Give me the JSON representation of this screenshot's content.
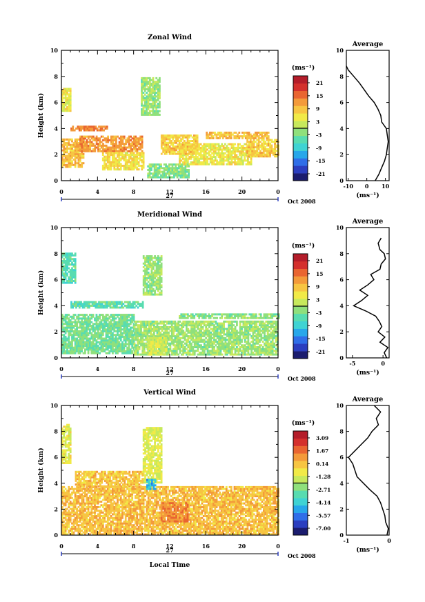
{
  "common": {
    "xlabel": "Local Time",
    "date_label": "Oct 2008",
    "day_label": "27",
    "unit_label": "(ms⁻¹)",
    "avg_title": "Average",
    "avg_xlabel": "(ms⁻¹)",
    "ylabel": "Height (km)"
  },
  "chart_data": [
    {
      "type": "heatmap",
      "title": "Zonal Wind",
      "ylabel": "Height (km)",
      "xlabel": "",
      "x_ticks": [
        "0",
        "4",
        "8",
        "12",
        "16",
        "20",
        "0"
      ],
      "y_ticks": [
        "0",
        "2",
        "4",
        "6",
        "8",
        "10"
      ],
      "xlim": [
        0,
        24
      ],
      "ylim": [
        0,
        10
      ],
      "colorbar_unit": "(ms⁻¹)",
      "colorbar_ticks": [
        "21",
        "15",
        "9",
        "3",
        "-3",
        "-9",
        "-15",
        "-21"
      ],
      "colorbar_range": [
        -24,
        24
      ],
      "colors": [
        "#1b1c6e",
        "#2b3ebf",
        "#2f6ee8",
        "#27a7ea",
        "#3fd3d3",
        "#58dcb0",
        "#8fe07c",
        "#c7e95c",
        "#f1ea47",
        "#f7c542",
        "#f39a3a",
        "#e96531",
        "#d4302d",
        "#b41d2a"
      ],
      "blobs": [
        {
          "x": [
            0,
            2.5
          ],
          "y": [
            1.0,
            3.2
          ],
          "v": 9
        },
        {
          "x": [
            2,
            9
          ],
          "y": [
            2.2,
            3.4
          ],
          "v": 12
        },
        {
          "x": [
            1,
            5
          ],
          "y": [
            3.8,
            4.1
          ],
          "v": 14
        },
        {
          "x": [
            4.5,
            9
          ],
          "y": [
            0.8,
            2.2
          ],
          "v": 6
        },
        {
          "x": [
            9.5,
            14
          ],
          "y": [
            0.2,
            1.3
          ],
          "v": -2
        },
        {
          "x": [
            8.8,
            10.8
          ],
          "y": [
            5.0,
            7.8
          ],
          "v": -1
        },
        {
          "x": [
            0,
            1
          ],
          "y": [
            5.3,
            7.0
          ],
          "v": 5
        },
        {
          "x": [
            13,
            21
          ],
          "y": [
            1.2,
            2.8
          ],
          "v": 5
        },
        {
          "x": [
            20.5,
            24
          ],
          "y": [
            1.8,
            3.2
          ],
          "v": 8
        },
        {
          "x": [
            11,
            15
          ],
          "y": [
            2.0,
            3.5
          ],
          "v": 8
        },
        {
          "x": [
            16,
            23
          ],
          "y": [
            3.2,
            3.7
          ],
          "v": 9
        }
      ],
      "avg": {
        "xlim": [
          -11,
          12
        ],
        "x_ticks": [
          "-10",
          "0",
          "10"
        ],
        "y_ticks": [
          "0",
          "2",
          "4",
          "6",
          "8",
          "10"
        ],
        "heights": [
          0.0,
          0.5,
          1.0,
          1.5,
          2.0,
          2.5,
          3.0,
          3.5,
          4.0,
          4.5,
          5.0,
          5.5,
          6.0,
          6.5,
          7.0,
          7.5,
          8.0,
          8.5,
          8.8
        ],
        "values": [
          4.5,
          6.5,
          8.0,
          9.5,
          10.5,
          11.0,
          11.5,
          11.0,
          10.5,
          8.0,
          7.5,
          6.0,
          4.0,
          1.0,
          -1.5,
          -4.0,
          -7.0,
          -10.0,
          -11.0
        ]
      }
    },
    {
      "type": "heatmap",
      "title": "Meridional Wind",
      "ylabel": "Height (km)",
      "xlabel": "",
      "x_ticks": [
        "0",
        "4",
        "8",
        "12",
        "16",
        "20",
        "0"
      ],
      "y_ticks": [
        "0",
        "2",
        "4",
        "6",
        "8",
        "10"
      ],
      "xlim": [
        0,
        24
      ],
      "ylim": [
        0,
        10
      ],
      "colorbar_unit": "(ms⁻¹)",
      "colorbar_ticks": [
        "21",
        "15",
        "9",
        "3",
        "-3",
        "-9",
        "-15",
        "-21"
      ],
      "colorbar_range": [
        -24,
        24
      ],
      "colors": [
        "#1b1c6e",
        "#2b3ebf",
        "#2f6ee8",
        "#27a7ea",
        "#3fd3d3",
        "#58dcb0",
        "#8fe07c",
        "#c7e95c",
        "#f1ea47",
        "#f7c542",
        "#f39a3a",
        "#e96531",
        "#d4302d",
        "#b41d2a"
      ],
      "blobs": [
        {
          "x": [
            0,
            8
          ],
          "y": [
            0.3,
            3.3
          ],
          "v": -3
        },
        {
          "x": [
            1,
            9
          ],
          "y": [
            3.8,
            4.3
          ],
          "v": -5
        },
        {
          "x": [
            8,
            24
          ],
          "y": [
            0.2,
            2.8
          ],
          "v": -1
        },
        {
          "x": [
            9,
            11
          ],
          "y": [
            4.8,
            7.8
          ],
          "v": -1
        },
        {
          "x": [
            0,
            1.5
          ],
          "y": [
            5.7,
            8.0
          ],
          "v": -5
        },
        {
          "x": [
            13,
            24
          ],
          "y": [
            3.0,
            3.4
          ],
          "v": -2
        },
        {
          "x": [
            9.5,
            11.5
          ],
          "y": [
            0.2,
            1.5
          ],
          "v": 3
        }
      ],
      "avg": {
        "xlim": [
          -6,
          1
        ],
        "x_ticks": [
          "-5",
          "0"
        ],
        "y_ticks": [
          "0",
          "2",
          "4",
          "6",
          "8",
          "10"
        ],
        "heights": [
          0.0,
          0.4,
          0.8,
          1.2,
          1.6,
          2.0,
          2.4,
          2.8,
          3.2,
          3.6,
          4.0,
          4.4,
          4.8,
          5.2,
          5.6,
          6.0,
          6.4,
          6.8,
          7.2,
          7.6,
          8.0,
          8.3,
          8.8,
          9.2
        ],
        "values": [
          0.6,
          0.2,
          0.8,
          -0.5,
          0.3,
          -0.8,
          -0.2,
          -0.6,
          -1.2,
          -2.8,
          -4.8,
          -3.5,
          -2.5,
          -3.8,
          -2.5,
          -1.5,
          -2.0,
          -0.5,
          -0.3,
          0.4,
          0.2,
          -0.5,
          -0.8,
          -0.3
        ]
      }
    },
    {
      "type": "heatmap",
      "title": "Vertical Wind",
      "ylabel": "Height (km)",
      "xlabel": "Local Time",
      "x_ticks": [
        "0",
        "4",
        "8",
        "12",
        "16",
        "20",
        "0"
      ],
      "y_ticks": [
        "0",
        "2",
        "4",
        "6",
        "8",
        "10"
      ],
      "xlim": [
        0,
        24
      ],
      "ylim": [
        0,
        10
      ],
      "colorbar_unit": "(ms⁻¹)",
      "colorbar_ticks": [
        "3.09",
        "1.67",
        "0.14",
        "-1.28",
        "-2.71",
        "-4.14",
        "-5.57",
        "-7.00"
      ],
      "colorbar_range": [
        -8.4,
        4.5
      ],
      "colors": [
        "#1b1c6e",
        "#2b3ebf",
        "#2f6ee8",
        "#27a7ea",
        "#3fd3d3",
        "#58dcb0",
        "#8fe07c",
        "#c7e95c",
        "#f1ea47",
        "#f7c542",
        "#f39a3a",
        "#e96531",
        "#d4302d",
        "#b41d2a"
      ],
      "blobs": [
        {
          "x": [
            0,
            24
          ],
          "y": [
            0.0,
            3.7
          ],
          "v": 0.5
        },
        {
          "x": [
            9,
            11
          ],
          "y": [
            4.0,
            8.2
          ],
          "v": -1.0
        },
        {
          "x": [
            0,
            1
          ],
          "y": [
            5.5,
            8.5
          ],
          "v": -0.8
        },
        {
          "x": [
            1.5,
            9
          ],
          "y": [
            3.7,
            4.9
          ],
          "v": 0.3
        },
        {
          "x": [
            11,
            14
          ],
          "y": [
            1.0,
            2.5
          ],
          "v": 1.5
        },
        {
          "x": [
            9.4,
            10.4
          ],
          "y": [
            3.5,
            4.3
          ],
          "v": -5.0
        }
      ],
      "avg": {
        "xlim": [
          -1,
          0
        ],
        "x_ticks": [
          "-1",
          "0"
        ],
        "y_ticks": [
          "0",
          "2",
          "4",
          "6",
          "8",
          "10"
        ],
        "heights": [
          0.0,
          0.5,
          1.0,
          1.5,
          2.0,
          2.5,
          3.0,
          3.5,
          4.0,
          4.5,
          5.0,
          5.5,
          6.0,
          6.5,
          7.0,
          7.5,
          8.0,
          8.5,
          9.0,
          9.5,
          10.0
        ],
        "values": [
          -0.05,
          -0.02,
          -0.08,
          -0.1,
          -0.15,
          -0.2,
          -0.28,
          -0.45,
          -0.6,
          -0.75,
          -0.8,
          -0.85,
          -0.95,
          -0.8,
          -0.65,
          -0.5,
          -0.4,
          -0.25,
          -0.3,
          -0.2,
          -0.35
        ]
      }
    }
  ]
}
